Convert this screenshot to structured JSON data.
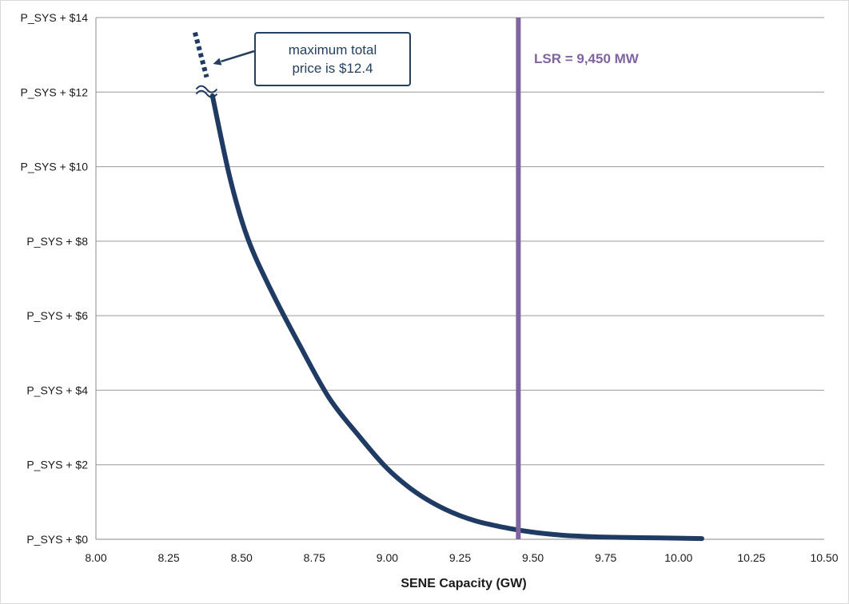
{
  "chart_data": {
    "type": "line",
    "title": "",
    "xlabel": "SENE Capacity (GW)",
    "ylabel": "",
    "xlim": [
      8.0,
      10.5
    ],
    "ylim": [
      0,
      14
    ],
    "x_ticks": [
      "8.00",
      "8.25",
      "8.50",
      "8.75",
      "9.00",
      "9.25",
      "9.50",
      "9.75",
      "10.00",
      "10.25",
      "10.50"
    ],
    "y_ticks": [
      "P_SYS + $0",
      "P_SYS + $2",
      "P_SYS + $4",
      "P_SYS + $6",
      "P_SYS + $8",
      "P_SYS + $10",
      "P_SYS + $12",
      "P_SYS + $14"
    ],
    "grid": true,
    "series": [
      {
        "color": "#1f3b63",
        "style": "solid",
        "points": [
          [
            8.4,
            11.9
          ],
          [
            8.46,
            9.7
          ],
          [
            8.52,
            8.1
          ],
          [
            8.6,
            6.7
          ],
          [
            8.7,
            5.2
          ],
          [
            8.8,
            3.8
          ],
          [
            8.9,
            2.8
          ],
          [
            9.0,
            1.9
          ],
          [
            9.1,
            1.25
          ],
          [
            9.2,
            0.8
          ],
          [
            9.3,
            0.5
          ],
          [
            9.4,
            0.32
          ],
          [
            9.5,
            0.19
          ],
          [
            9.6,
            0.11
          ],
          [
            9.7,
            0.07
          ],
          [
            9.8,
            0.05
          ],
          [
            9.9,
            0.04
          ],
          [
            10.0,
            0.03
          ],
          [
            10.08,
            0.02
          ]
        ]
      },
      {
        "color": "#1f3b63",
        "style": "dotted",
        "points": [
          [
            8.34,
            13.6
          ],
          [
            8.38,
            12.4
          ]
        ]
      }
    ],
    "vertical_line": {
      "x": 9.45,
      "color": "#8064a2",
      "label": "LSR = 9,450 MW"
    },
    "annotation": {
      "lines": [
        "maximum total",
        "price is $12.4"
      ],
      "points_to": [
        8.38,
        12.8
      ]
    },
    "break_mark": {
      "x": 8.38,
      "y": 12.1
    }
  }
}
